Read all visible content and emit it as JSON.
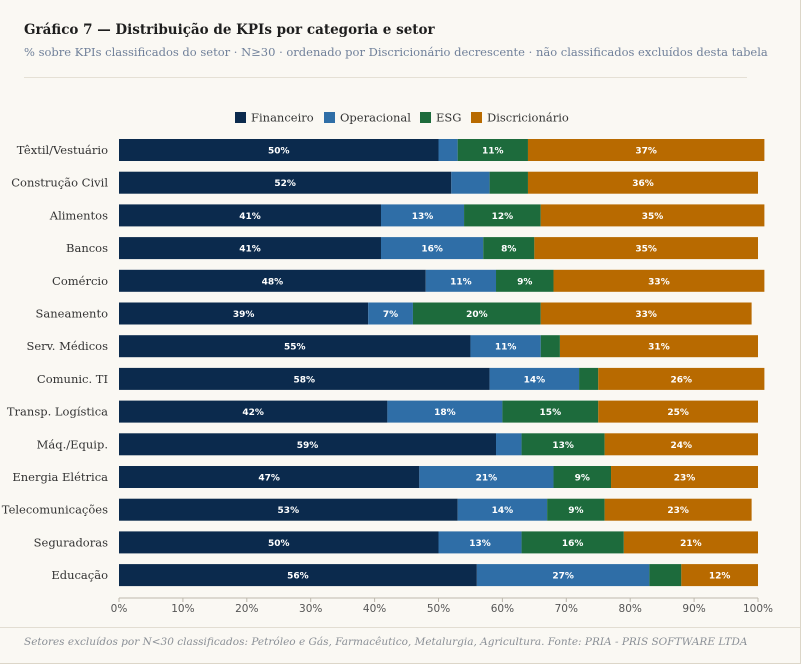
{
  "header": {
    "title": "Gráfico 7 — Distribuição de KPIs por categoria e setor",
    "subtitle": "% sobre KPIs classificados do setor · N≥30 · ordenado por Discricionário decrescente · não classificados excluídos desta tabela"
  },
  "footer": {
    "note": "Setores excluídos por N<30 classificados: Petróleo e Gás, Farmacêutico, Metalurgia, Agricultura. Fonte: PRIA - PRIS SOFTWARE LTDA"
  },
  "chart_data": {
    "type": "bar",
    "orientation": "horizontal",
    "stacked": true,
    "legend_position": "top-center",
    "xlim": [
      0,
      100
    ],
    "ticks": [
      "0%",
      "10%",
      "20%",
      "30%",
      "40%",
      "50%",
      "60%",
      "70%",
      "80%",
      "90%",
      "100%"
    ],
    "categories": [
      "Têxtil/Vestuário",
      "Construção Civil",
      "Alimentos",
      "Bancos",
      "Comércio",
      "Saneamento",
      "Serv. Médicos",
      "Comunic. TI",
      "Transp. Logística",
      "Máq./Equip.",
      "Energia Elétrica",
      "Telecomunicações",
      "Seguradoras",
      "Educação"
    ],
    "series": [
      {
        "name": "Financeiro",
        "color": "#0b2a4d",
        "values": [
          50,
          52,
          41,
          41,
          48,
          39,
          55,
          58,
          42,
          59,
          47,
          53,
          50,
          56
        ],
        "labels": [
          "50%",
          "52%",
          "41%",
          "41%",
          "48%",
          "39%",
          "55%",
          "58%",
          "42%",
          "59%",
          "47%",
          "53%",
          "50%",
          "56%"
        ]
      },
      {
        "name": "Operacional",
        "color": "#2f6ea7",
        "values": [
          3,
          6,
          13,
          16,
          11,
          7,
          11,
          14,
          18,
          4,
          21,
          14,
          13,
          27
        ],
        "labels": [
          "",
          "",
          "13%",
          "16%",
          "11%",
          "7%",
          "11%",
          "14%",
          "18%",
          "",
          "21%",
          "14%",
          "13%",
          "27%"
        ]
      },
      {
        "name": "ESG",
        "color": "#1d6b3c",
        "values": [
          11,
          6,
          12,
          8,
          9,
          20,
          3,
          3,
          15,
          13,
          9,
          9,
          16,
          5
        ],
        "labels": [
          "11%",
          "",
          "12%",
          "8%",
          "9%",
          "20%",
          "",
          "",
          "15%",
          "13%",
          "9%",
          "9%",
          "16%",
          ""
        ]
      },
      {
        "name": "Discricionário",
        "color": "#b86a00",
        "values": [
          37,
          36,
          35,
          35,
          33,
          33,
          31,
          26,
          25,
          24,
          23,
          23,
          21,
          12
        ],
        "labels": [
          "37%",
          "36%",
          "35%",
          "35%",
          "33%",
          "33%",
          "31%",
          "26%",
          "25%",
          "24%",
          "23%",
          "23%",
          "21%",
          "12%"
        ]
      }
    ]
  }
}
